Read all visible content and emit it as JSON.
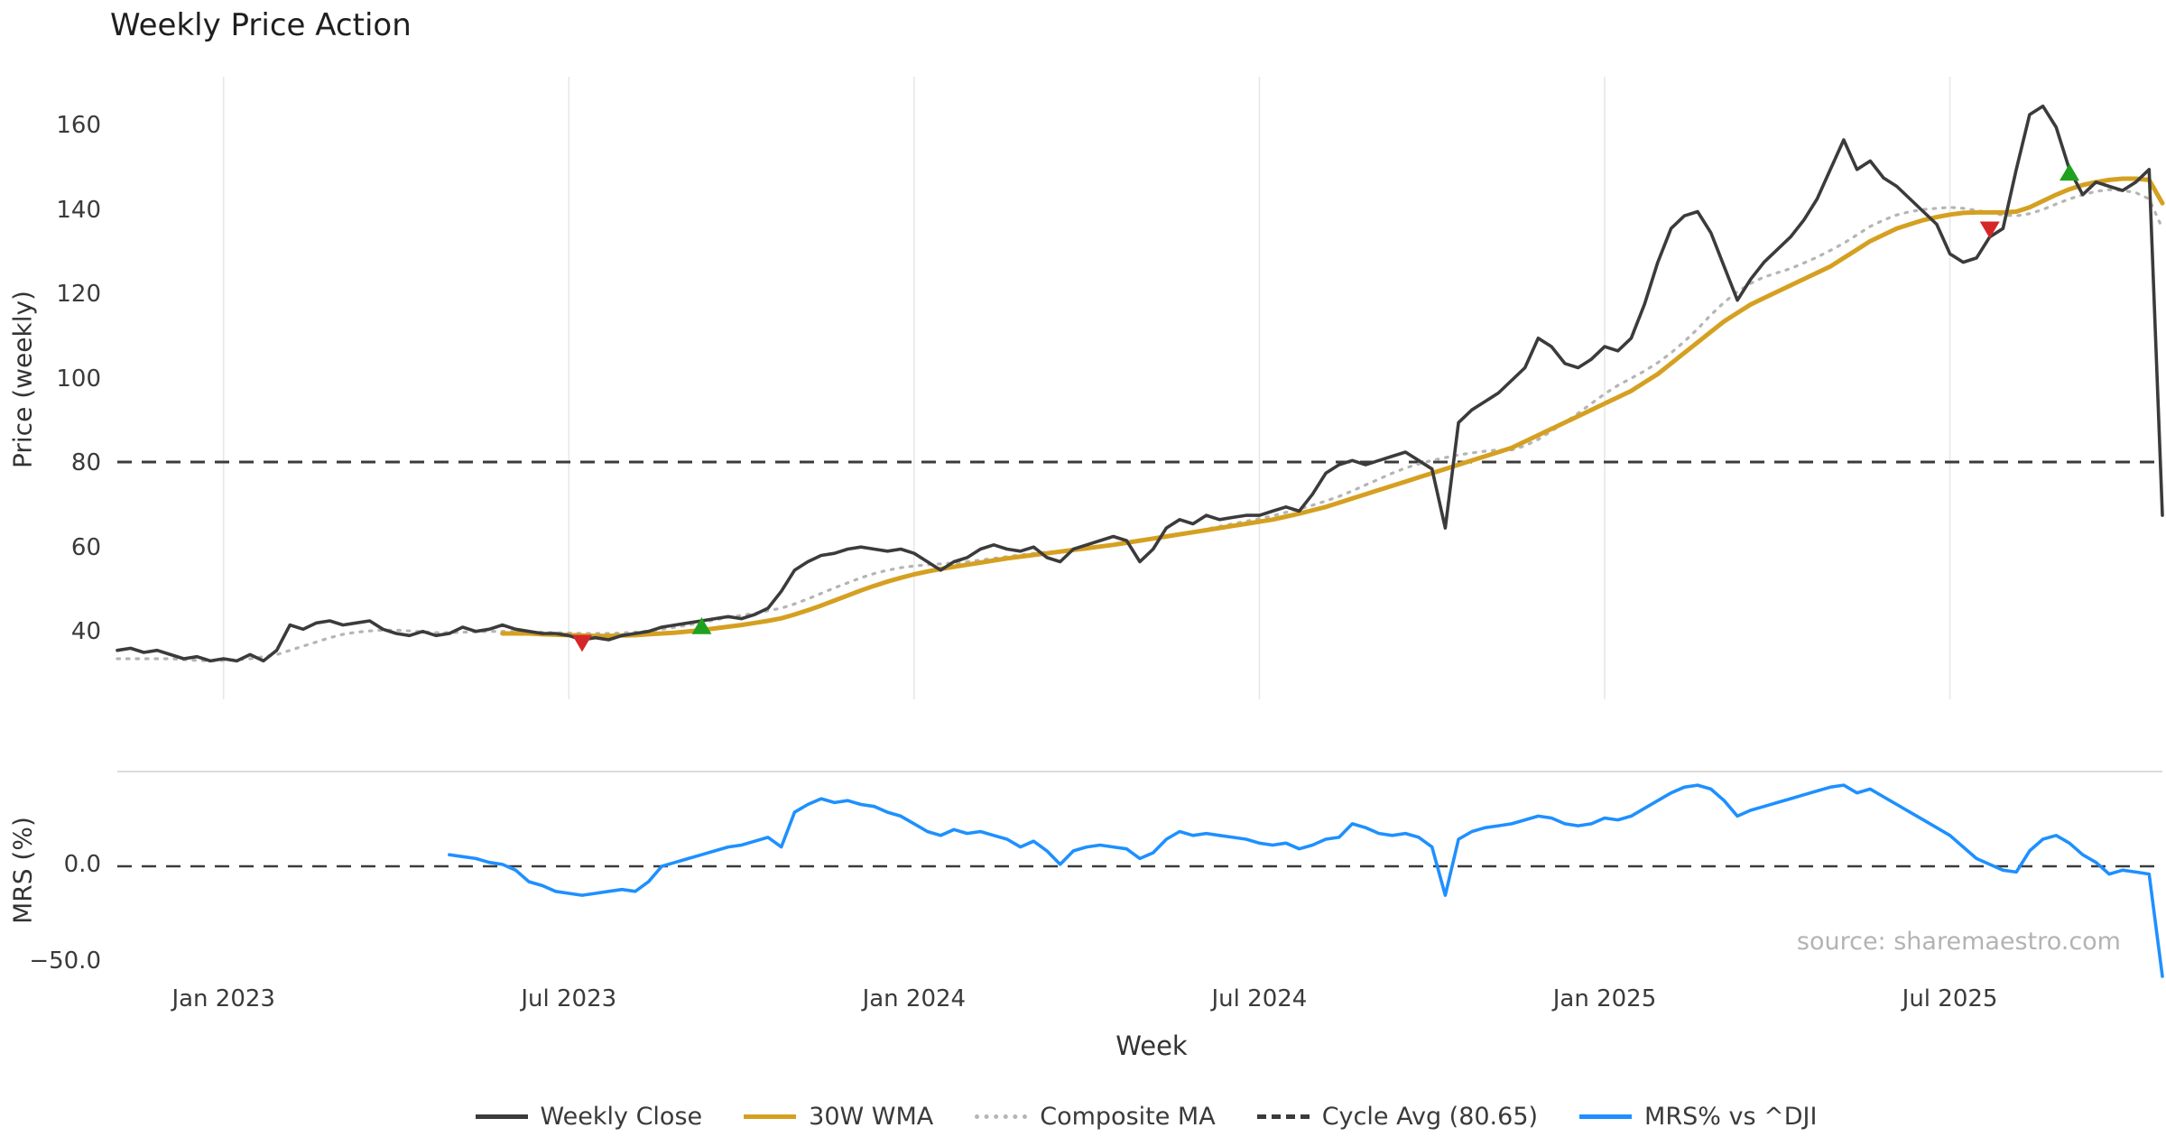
{
  "title": "Weekly Price Action",
  "source_text": "source: sharemaestro.com",
  "axes": {
    "x_label": "Week",
    "price_label": "Price (weekly)",
    "mrs_label": "MRS (%)"
  },
  "legend": [
    {
      "label": "Weekly Close",
      "color": "#3b3b3b",
      "style": "solid"
    },
    {
      "label": "30W WMA",
      "color": "#d5a021",
      "style": "solid"
    },
    {
      "label": "Composite MA",
      "color": "#b5b5b5",
      "style": "dotted"
    },
    {
      "label": "Cycle Avg (80.65)",
      "color": "#3b3b3b",
      "style": "dashed"
    },
    {
      "label": "MRS% vs ^DJI",
      "color": "#1e90ff",
      "style": "solid"
    }
  ],
  "chart_data": {
    "type": "line",
    "n_weeks": 155,
    "x_ticks": [
      {
        "week": 8,
        "label": "Jan 2023"
      },
      {
        "week": 34,
        "label": "Jul 2023"
      },
      {
        "week": 60,
        "label": "Jan 2024"
      },
      {
        "week": 86,
        "label": "Jul 2024"
      },
      {
        "week": 112,
        "label": "Jan 2025"
      },
      {
        "week": 138,
        "label": "Jul 2025"
      }
    ],
    "price_panel": {
      "tick_values": [
        40,
        60,
        80,
        100,
        120,
        140,
        160
      ],
      "tick_labels": [
        "40",
        "60",
        "80",
        "100",
        "120",
        "140",
        "160"
      ],
      "ylim": [
        24,
        172
      ],
      "cycle_avg": 80.65
    },
    "mrs_panel": {
      "ticks": [
        {
          "value": 0,
          "label": "0.0"
        },
        {
          "value": -50,
          "label": "−50.0"
        }
      ],
      "ylim": [
        -60,
        49
      ]
    },
    "series": [
      {
        "name": "Composite MA",
        "panel": "price",
        "color": "#b5b5b5",
        "width": 3.2,
        "dash": "2.5 8",
        "values": [
          34,
          34,
          34,
          34,
          34,
          33.8,
          33.6,
          33.5,
          33.6,
          33.8,
          34,
          34.5,
          35,
          36,
          37,
          38,
          39,
          39.8,
          40.3,
          40.6,
          40.8,
          40.8,
          40.6,
          40.4,
          40.2,
          40.2,
          40.3,
          40.4,
          40.5,
          40.5,
          40.5,
          40.4,
          40.3,
          40.2,
          40.1,
          40,
          40,
          40,
          40.1,
          40.3,
          40.6,
          41,
          41.5,
          42,
          42.6,
          43.2,
          43.8,
          44.3,
          44.8,
          45.4,
          46,
          47,
          48.2,
          49.5,
          50.8,
          52,
          53.2,
          54.2,
          55,
          55.6,
          56,
          56.3,
          56.5,
          56.7,
          57,
          57.4,
          57.8,
          58.2,
          58.6,
          59,
          59.3,
          59.5,
          59.8,
          60.2,
          60.7,
          61.2,
          61.7,
          62,
          62.3,
          62.8,
          63.4,
          64,
          64.7,
          65.4,
          66,
          66.6,
          67.2,
          67.9,
          68.7,
          69.5,
          70.4,
          71.4,
          72.5,
          73.8,
          75.2,
          76.6,
          78,
          79.2,
          80.2,
          81,
          81.7,
          82.3,
          82.8,
          83.2,
          83.5,
          83.5,
          84.5,
          86,
          88,
          90,
          92.2,
          94.5,
          96.8,
          98.8,
          100.5,
          102.2,
          104.2,
          106.5,
          109.2,
          112.2,
          115.5,
          118.5,
          121,
          123,
          124.5,
          125.5,
          126.5,
          127.8,
          129.2,
          130.8,
          132.5,
          134.5,
          136.5,
          138,
          139.2,
          140,
          140.5,
          140.8,
          141,
          140.8,
          140.3,
          139.7,
          139.2,
          139,
          139.5,
          140.5,
          141.8,
          143,
          144,
          144.8,
          145.2,
          145,
          144.5,
          143,
          136
        ]
      },
      {
        "name": "30W WMA",
        "panel": "price",
        "color": "#d5a021",
        "width": 5,
        "dash": null,
        "values": [
          null,
          null,
          null,
          null,
          null,
          null,
          null,
          null,
          null,
          null,
          null,
          null,
          null,
          null,
          null,
          null,
          null,
          null,
          null,
          null,
          null,
          null,
          null,
          null,
          null,
          null,
          null,
          null,
          null,
          40,
          40,
          40,
          39.8,
          39.7,
          39.6,
          39.5,
          39.4,
          39.4,
          39.5,
          39.6,
          39.8,
          40,
          40.2,
          40.5,
          40.8,
          41.2,
          41.6,
          42,
          42.5,
          43,
          43.6,
          44.5,
          45.5,
          46.6,
          47.8,
          49,
          50.2,
          51.3,
          52.3,
          53.2,
          54,
          54.7,
          55.3,
          55.8,
          56.3,
          56.8,
          57.3,
          57.8,
          58.2,
          58.6,
          59,
          59.4,
          59.8,
          60.2,
          60.6,
          61,
          61.5,
          62,
          62.5,
          63,
          63.5,
          64,
          64.5,
          65,
          65.5,
          66,
          66.5,
          67,
          67.7,
          68.4,
          69.2,
          70,
          71,
          72,
          73,
          74,
          75,
          76,
          77,
          78,
          79,
          80,
          81,
          82,
          83,
          84,
          85.5,
          87,
          88.5,
          90,
          91.5,
          93,
          94.5,
          96,
          97.5,
          99.5,
          101.5,
          104,
          106.5,
          109,
          111.5,
          114,
          116,
          118,
          119.5,
          121,
          122.5,
          124,
          125.5,
          127,
          129,
          131,
          133,
          134.5,
          136,
          137,
          138,
          138.7,
          139.3,
          139.7,
          139.8,
          139.8,
          139.8,
          140,
          141,
          142.5,
          144,
          145.3,
          146.3,
          147,
          147.5,
          147.8,
          147.8,
          147.5,
          142
        ]
      },
      {
        "name": "Weekly Close",
        "panel": "price",
        "color": "#3b3b3b",
        "width": 3.6,
        "dash": null,
        "values": [
          36,
          36.5,
          35.5,
          36,
          35,
          34,
          34.5,
          33.5,
          34,
          33.5,
          35,
          33.5,
          36,
          42,
          41,
          42.5,
          43,
          42,
          42.5,
          43,
          41,
          40,
          39.5,
          40.5,
          39.5,
          40,
          41.5,
          40.5,
          41,
          42,
          41,
          40.5,
          40,
          40,
          39.5,
          38.5,
          39,
          38.5,
          39.5,
          40,
          40.5,
          41.5,
          42,
          42.5,
          43,
          43.5,
          44,
          43.5,
          44.5,
          46,
          50,
          55,
          57,
          58.5,
          59,
          60,
          60.5,
          60,
          59.5,
          60,
          59,
          57,
          55,
          57,
          58,
          60,
          61,
          60,
          59.5,
          60.5,
          58,
          57,
          60,
          61,
          62,
          63,
          62,
          57,
          60,
          65,
          67,
          66,
          68,
          67,
          67.5,
          68,
          68,
          69,
          70,
          69,
          73,
          78,
          80,
          81,
          80,
          81,
          82,
          83,
          81,
          79,
          65,
          90,
          93,
          95,
          97,
          100,
          103,
          110,
          108,
          104,
          103,
          105,
          108,
          107,
          110,
          118,
          128,
          136,
          139,
          140,
          135,
          127,
          119,
          124,
          128,
          131,
          134,
          138,
          143,
          150,
          157,
          150,
          152,
          148,
          146,
          143,
          140,
          137,
          130,
          128,
          129,
          134,
          136,
          150,
          163,
          165,
          160,
          150,
          144,
          147,
          146,
          145,
          147,
          150,
          68
        ]
      },
      {
        "name": "MRS% vs ^DJI",
        "panel": "mrs",
        "color": "#1e90ff",
        "width": 3.6,
        "dash": null,
        "values": [
          null,
          null,
          null,
          null,
          null,
          null,
          null,
          null,
          null,
          null,
          null,
          null,
          null,
          null,
          null,
          null,
          null,
          null,
          null,
          null,
          null,
          null,
          null,
          null,
          null,
          6,
          5,
          4,
          2,
          1,
          -2,
          -8,
          -10,
          -13,
          -14,
          -15,
          -14,
          -13,
          -12,
          -13,
          -8,
          0,
          2,
          4,
          6,
          8,
          10,
          11,
          13,
          15,
          10,
          28,
          32,
          35,
          33,
          34,
          32,
          31,
          28,
          26,
          22,
          18,
          16,
          19,
          17,
          18,
          16,
          14,
          10,
          13,
          8,
          1,
          8,
          10,
          11,
          10,
          9,
          4,
          7,
          14,
          18,
          16,
          17,
          16,
          15,
          14,
          12,
          11,
          12,
          9,
          11,
          14,
          15,
          22,
          20,
          17,
          16,
          17,
          15,
          10,
          -15,
          14,
          18,
          20,
          21,
          22,
          24,
          26,
          25,
          22,
          21,
          22,
          25,
          24,
          26,
          30,
          34,
          38,
          41,
          42,
          40,
          34,
          26,
          29,
          31,
          33,
          35,
          37,
          39,
          41,
          42,
          38,
          40,
          36,
          32,
          28,
          24,
          20,
          16,
          10,
          4,
          1,
          -2,
          -3,
          8,
          14,
          16,
          12,
          6,
          2,
          -4,
          -2,
          -3,
          -4,
          -57
        ]
      }
    ],
    "markers": {
      "buy": {
        "color": "#1ea11e",
        "shape": "triangle-up",
        "points": [
          {
            "week": 44,
            "price": 41.5
          },
          {
            "week": 147,
            "price": 149
          }
        ]
      },
      "sell": {
        "color": "#d62728",
        "shape": "triangle-down",
        "points": [
          {
            "week": 35,
            "price": 38
          },
          {
            "week": 141,
            "price": 136
          }
        ]
      }
    }
  }
}
